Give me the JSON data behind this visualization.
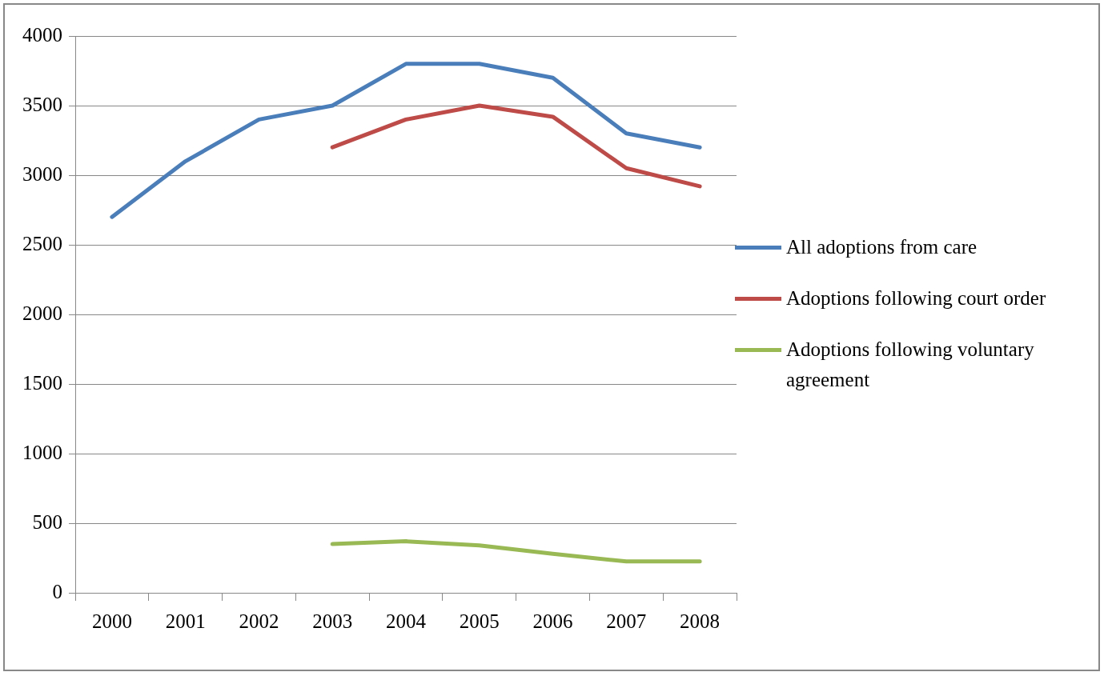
{
  "chart_data": {
    "type": "line",
    "categories": [
      "2000",
      "2001",
      "2002",
      "2003",
      "2004",
      "2005",
      "2006",
      "2007",
      "2008"
    ],
    "series": [
      {
        "name": "All adoptions from care",
        "color": "#4a7ebb",
        "values": [
          2700,
          3100,
          3400,
          3500,
          3800,
          3800,
          3700,
          3300,
          3200
        ]
      },
      {
        "name": "Adoptions following court order",
        "color": "#be4b48",
        "values": [
          null,
          null,
          null,
          3200,
          3400,
          3500,
          3420,
          3050,
          2920
        ]
      },
      {
        "name": "Adoptions following voluntary agreement",
        "color": "#98b954",
        "values": [
          null,
          null,
          null,
          350,
          370,
          340,
          280,
          225,
          225
        ]
      }
    ],
    "ylim": [
      0,
      4000
    ],
    "yticks": [
      0,
      500,
      1000,
      1500,
      2000,
      2500,
      3000,
      3500,
      4000
    ],
    "grid": "y",
    "legend": "right",
    "marker": "none",
    "line_style": "solid"
  }
}
